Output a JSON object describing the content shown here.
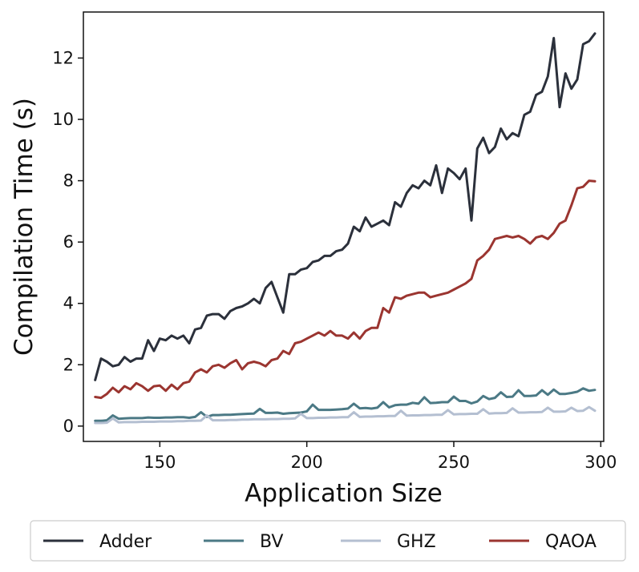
{
  "chart_data": {
    "type": "line",
    "title": "",
    "xlabel": "Application Size",
    "ylabel": "Compilation Time (s)",
    "xlim": [
      124,
      301
    ],
    "ylim": [
      -0.5,
      13.5
    ],
    "xticks": [
      150,
      200,
      250,
      300
    ],
    "yticks": [
      0,
      2,
      4,
      6,
      8,
      10,
      12
    ],
    "grid": false,
    "legend_position": "bottom-outside",
    "series": [
      {
        "name": "Adder",
        "color": "#2b303b",
        "x": [
          128,
          130,
          132,
          134,
          136,
          138,
          140,
          142,
          144,
          146,
          148,
          150,
          152,
          154,
          156,
          158,
          160,
          162,
          164,
          166,
          168,
          170,
          172,
          174,
          176,
          178,
          180,
          182,
          184,
          186,
          188,
          190,
          192,
          194,
          196,
          198,
          200,
          202,
          204,
          206,
          208,
          210,
          212,
          214,
          216,
          218,
          220,
          222,
          224,
          226,
          228,
          230,
          232,
          234,
          236,
          238,
          240,
          242,
          244,
          246,
          248,
          250,
          252,
          254,
          256,
          258,
          260,
          262,
          264,
          266,
          268,
          270,
          272,
          274,
          276,
          278,
          280,
          282,
          284,
          286,
          288,
          290,
          292,
          294,
          296,
          298
        ],
        "values": [
          1.5,
          2.2,
          2.1,
          1.95,
          2.0,
          2.25,
          2.1,
          2.2,
          2.2,
          2.8,
          2.45,
          2.85,
          2.8,
          2.95,
          2.85,
          2.95,
          2.7,
          3.15,
          3.2,
          3.6,
          3.65,
          3.65,
          3.5,
          3.75,
          3.85,
          3.9,
          4.0,
          4.15,
          4.0,
          4.5,
          4.7,
          4.2,
          3.7,
          4.95,
          4.95,
          5.1,
          5.15,
          5.35,
          5.4,
          5.55,
          5.55,
          5.7,
          5.75,
          5.95,
          6.5,
          6.35,
          6.8,
          6.5,
          6.6,
          6.7,
          6.55,
          7.3,
          7.15,
          7.6,
          7.85,
          7.75,
          8.0,
          7.85,
          8.5,
          7.6,
          8.4,
          8.25,
          8.05,
          8.4,
          6.7,
          9.05,
          9.4,
          8.9,
          9.1,
          9.7,
          9.35,
          9.55,
          9.45,
          10.15,
          10.25,
          10.8,
          10.9,
          11.4,
          12.65,
          10.4,
          11.5,
          11.0,
          11.3,
          12.45,
          12.55,
          12.8
        ]
      },
      {
        "name": "BV",
        "color": "#4b7985",
        "x": [
          128,
          130,
          132,
          134,
          136,
          138,
          140,
          142,
          144,
          146,
          148,
          150,
          152,
          154,
          156,
          158,
          160,
          162,
          164,
          166,
          168,
          170,
          172,
          174,
          176,
          178,
          180,
          182,
          184,
          186,
          188,
          190,
          192,
          194,
          196,
          198,
          200,
          202,
          204,
          206,
          208,
          210,
          212,
          214,
          216,
          218,
          220,
          222,
          224,
          226,
          228,
          230,
          232,
          234,
          236,
          238,
          240,
          242,
          244,
          246,
          248,
          250,
          252,
          254,
          256,
          258,
          260,
          262,
          264,
          266,
          268,
          270,
          272,
          274,
          276,
          278,
          280,
          282,
          284,
          286,
          288,
          290,
          292,
          294,
          296,
          298
        ],
        "values": [
          0.17,
          0.17,
          0.19,
          0.35,
          0.24,
          0.25,
          0.26,
          0.26,
          0.26,
          0.28,
          0.27,
          0.27,
          0.28,
          0.28,
          0.29,
          0.29,
          0.27,
          0.3,
          0.45,
          0.3,
          0.36,
          0.36,
          0.37,
          0.37,
          0.38,
          0.39,
          0.4,
          0.41,
          0.56,
          0.43,
          0.43,
          0.44,
          0.4,
          0.42,
          0.43,
          0.44,
          0.48,
          0.7,
          0.53,
          0.53,
          0.53,
          0.54,
          0.55,
          0.57,
          0.73,
          0.58,
          0.59,
          0.57,
          0.6,
          0.78,
          0.61,
          0.68,
          0.7,
          0.7,
          0.76,
          0.73,
          0.94,
          0.75,
          0.76,
          0.78,
          0.78,
          0.96,
          0.82,
          0.82,
          0.74,
          0.8,
          0.98,
          0.88,
          0.92,
          1.1,
          0.95,
          0.96,
          1.17,
          0.98,
          0.98,
          1.0,
          1.17,
          1.02,
          1.19,
          1.05,
          1.05,
          1.08,
          1.12,
          1.23,
          1.15,
          1.18
        ]
      },
      {
        "name": "GHZ",
        "color": "#b4bfd1",
        "x": [
          128,
          130,
          132,
          134,
          136,
          138,
          140,
          142,
          144,
          146,
          148,
          150,
          152,
          154,
          156,
          158,
          160,
          162,
          164,
          166,
          168,
          170,
          172,
          174,
          176,
          178,
          180,
          182,
          184,
          186,
          188,
          190,
          192,
          194,
          196,
          198,
          200,
          202,
          204,
          206,
          208,
          210,
          212,
          214,
          216,
          218,
          220,
          222,
          224,
          226,
          228,
          230,
          232,
          234,
          236,
          238,
          240,
          242,
          244,
          246,
          248,
          250,
          252,
          254,
          256,
          258,
          260,
          262,
          264,
          266,
          268,
          270,
          272,
          274,
          276,
          278,
          280,
          282,
          284,
          286,
          288,
          290,
          292,
          294,
          296,
          298
        ],
        "values": [
          0.1,
          0.1,
          0.11,
          0.25,
          0.12,
          0.13,
          0.13,
          0.13,
          0.14,
          0.14,
          0.14,
          0.15,
          0.15,
          0.15,
          0.16,
          0.16,
          0.17,
          0.17,
          0.18,
          0.35,
          0.19,
          0.19,
          0.19,
          0.2,
          0.2,
          0.21,
          0.21,
          0.22,
          0.22,
          0.22,
          0.23,
          0.23,
          0.24,
          0.24,
          0.25,
          0.4,
          0.26,
          0.26,
          0.27,
          0.27,
          0.28,
          0.28,
          0.29,
          0.29,
          0.45,
          0.3,
          0.31,
          0.31,
          0.32,
          0.32,
          0.33,
          0.33,
          0.5,
          0.34,
          0.35,
          0.35,
          0.36,
          0.36,
          0.37,
          0.37,
          0.52,
          0.38,
          0.39,
          0.39,
          0.4,
          0.4,
          0.55,
          0.41,
          0.42,
          0.42,
          0.43,
          0.58,
          0.44,
          0.44,
          0.45,
          0.45,
          0.46,
          0.6,
          0.47,
          0.47,
          0.48,
          0.6,
          0.49,
          0.5,
          0.62,
          0.5
        ]
      },
      {
        "name": "QAOA",
        "color": "#9b3530",
        "x": [
          128,
          130,
          132,
          134,
          136,
          138,
          140,
          142,
          144,
          146,
          148,
          150,
          152,
          154,
          156,
          158,
          160,
          162,
          164,
          166,
          168,
          170,
          172,
          174,
          176,
          178,
          180,
          182,
          184,
          186,
          188,
          190,
          192,
          194,
          196,
          198,
          200,
          202,
          204,
          206,
          208,
          210,
          212,
          214,
          216,
          218,
          220,
          222,
          224,
          226,
          228,
          230,
          232,
          234,
          236,
          238,
          240,
          242,
          244,
          246,
          248,
          250,
          252,
          254,
          256,
          258,
          260,
          262,
          264,
          266,
          268,
          270,
          272,
          274,
          276,
          278,
          280,
          282,
          284,
          286,
          288,
          290,
          292,
          294,
          296,
          298
        ],
        "values": [
          0.95,
          0.92,
          1.05,
          1.25,
          1.1,
          1.3,
          1.2,
          1.4,
          1.3,
          1.15,
          1.3,
          1.32,
          1.15,
          1.35,
          1.2,
          1.4,
          1.45,
          1.75,
          1.85,
          1.75,
          1.95,
          2.0,
          1.9,
          2.05,
          2.15,
          1.85,
          2.05,
          2.1,
          2.05,
          1.95,
          2.15,
          2.2,
          2.45,
          2.35,
          2.7,
          2.75,
          2.85,
          2.95,
          3.05,
          2.95,
          3.1,
          2.95,
          2.95,
          2.85,
          3.05,
          2.85,
          3.1,
          3.2,
          3.2,
          3.85,
          3.7,
          4.2,
          4.15,
          4.25,
          4.3,
          4.35,
          4.35,
          4.2,
          4.25,
          4.3,
          4.35,
          4.45,
          4.55,
          4.65,
          4.8,
          5.4,
          5.55,
          5.75,
          6.1,
          6.15,
          6.2,
          6.15,
          6.2,
          6.1,
          5.95,
          6.15,
          6.2,
          6.1,
          6.3,
          6.6,
          6.7,
          7.2,
          7.75,
          7.8,
          8.0,
          7.98
        ]
      }
    ]
  }
}
